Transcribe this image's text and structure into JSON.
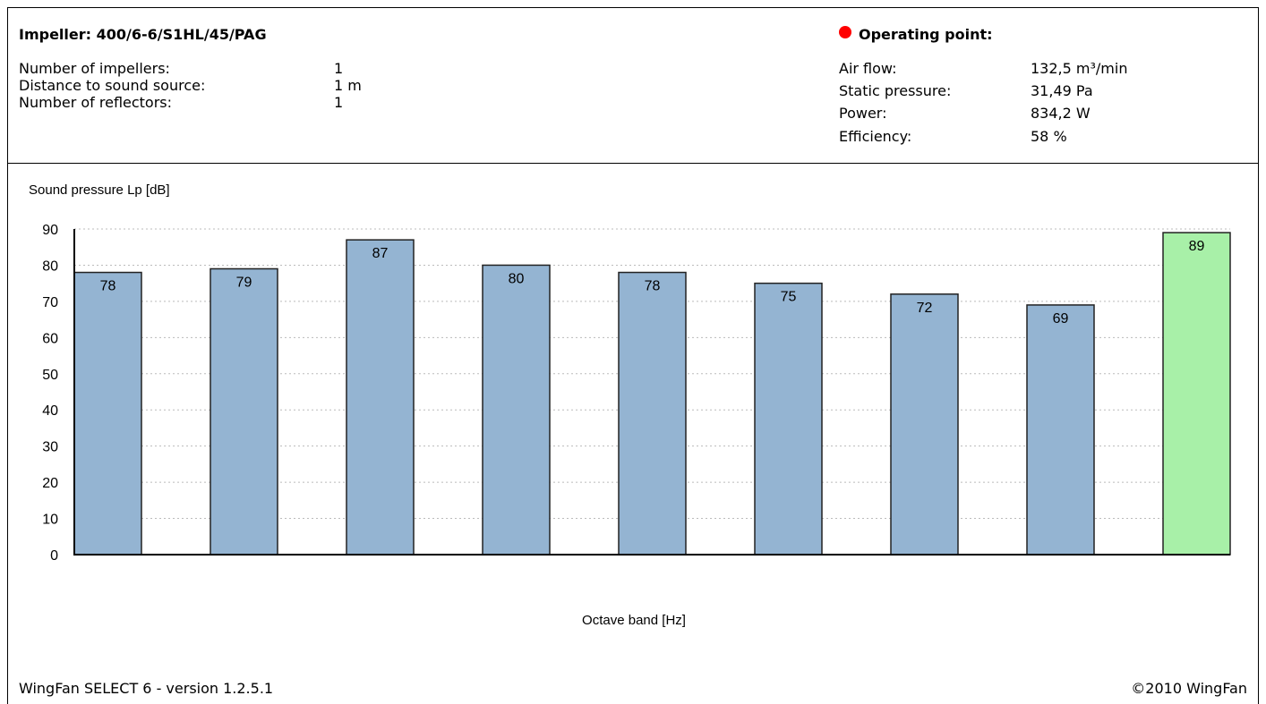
{
  "header": {
    "impeller_label": "Impeller: 400/6-6/S1HL/45/PAG",
    "rows": [
      {
        "label": "Number of impellers:",
        "value": "1"
      },
      {
        "label": "Distance to sound source:",
        "value": "1 m"
      },
      {
        "label": "Number of reflectors:",
        "value": "1"
      }
    ]
  },
  "operating_point": {
    "title": "Operating point:",
    "indicator_color": "#ff0000",
    "rows": [
      {
        "label": "Air flow:",
        "value": "132,5 m³/min"
      },
      {
        "label": "Static pressure:",
        "value": "31,49 Pa"
      },
      {
        "label": "Power:",
        "value": "834,2 W"
      },
      {
        "label": "Efficiency:",
        "value": "58 %"
      }
    ]
  },
  "chart_data": {
    "type": "bar",
    "ylabel": "Sound pressure Lp [dB]",
    "xlabel": "Octave band [Hz]",
    "ylim": [
      0,
      90
    ],
    "yticks": [
      0,
      10,
      20,
      30,
      40,
      50,
      60,
      70,
      80,
      90
    ],
    "grid": true,
    "values": [
      78,
      79,
      87,
      80,
      78,
      75,
      72,
      69,
      89
    ],
    "value_labels": [
      "78",
      "79",
      "87",
      "80",
      "78",
      "75",
      "72",
      "69",
      "89"
    ],
    "bar_colors": [
      "#94b4d2",
      "#94b4d2",
      "#94b4d2",
      "#94b4d2",
      "#94b4d2",
      "#94b4d2",
      "#94b4d2",
      "#94b4d2",
      "#a8f0a8"
    ]
  },
  "footer": {
    "version": "WingFan SELECT 6 - version 1.2.5.1",
    "copyright": "©2010 WingFan"
  }
}
